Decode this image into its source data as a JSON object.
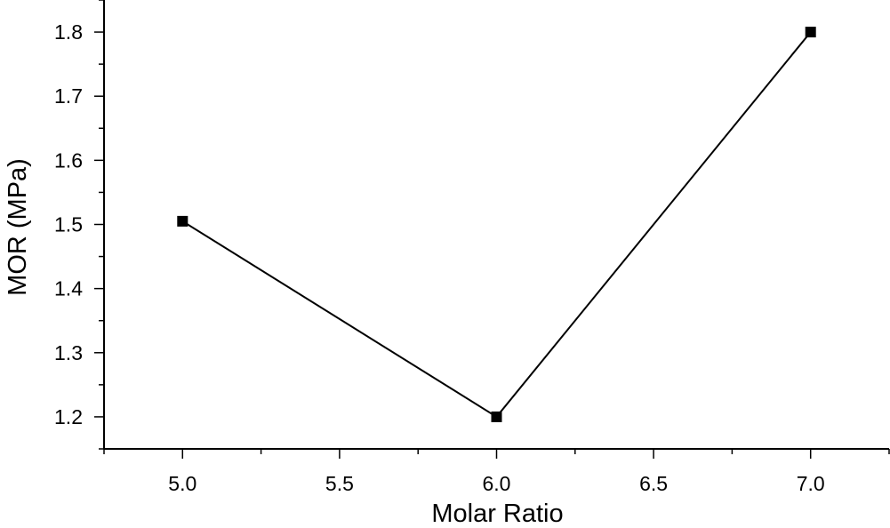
{
  "chart_data": {
    "type": "line",
    "title": "",
    "xlabel": "Molar  Ratio",
    "ylabel": "MOR (MPa)",
    "xlim": [
      4.75,
      7.25
    ],
    "ylim": [
      1.15,
      1.85
    ],
    "xticks": [
      "5.0",
      "5.5",
      "6.0",
      "6.5",
      "7.0"
    ],
    "yticks": [
      "1.2",
      "1.3",
      "1.4",
      "1.5",
      "1.6",
      "1.7",
      "1.8"
    ],
    "grid": false,
    "series": [
      {
        "marker": "square",
        "color": "#000000",
        "x": [
          5.0,
          6.0,
          7.0
        ],
        "y": [
          1.505,
          1.2,
          1.8
        ]
      }
    ]
  }
}
